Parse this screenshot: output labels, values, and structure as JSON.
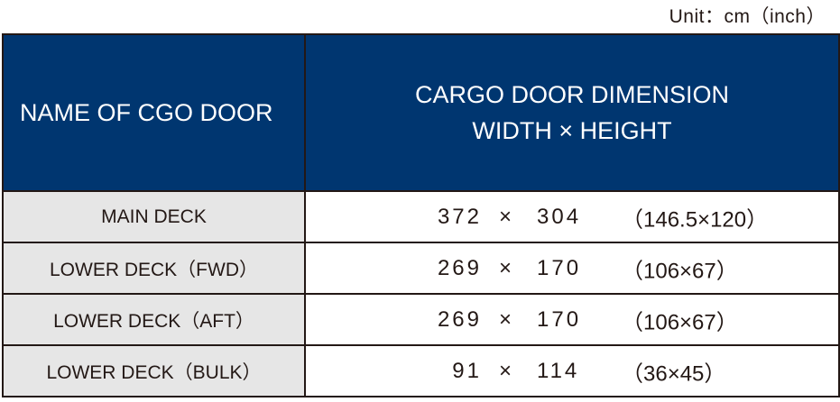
{
  "unit_note": "Unit：cm（inch）",
  "header": {
    "name_col": "NAME OF CGO DOOR",
    "dim_line1": "CARGO DOOR DIMENSION",
    "dim_line2": "WIDTH × HEIGHT"
  },
  "rows": [
    {
      "name": "MAIN DECK",
      "width": "372",
      "times": "×",
      "height": "304",
      "inch": "（146.5×120）"
    },
    {
      "name": "LOWER DECK（FWD）",
      "width": "269",
      "times": "×",
      "height": "170",
      "inch": "（106×67）"
    },
    {
      "name": "LOWER DECK（AFT）",
      "width": "269",
      "times": "×",
      "height": "170",
      "inch": "（106×67）"
    },
    {
      "name": "LOWER DECK（BULK）",
      "width": "91",
      "times": "×",
      "height": "114",
      "inch": "（36×45）"
    }
  ],
  "colors": {
    "header_bg": "#003670",
    "name_cell_bg": "#e6e6e6",
    "border": "#231815"
  }
}
